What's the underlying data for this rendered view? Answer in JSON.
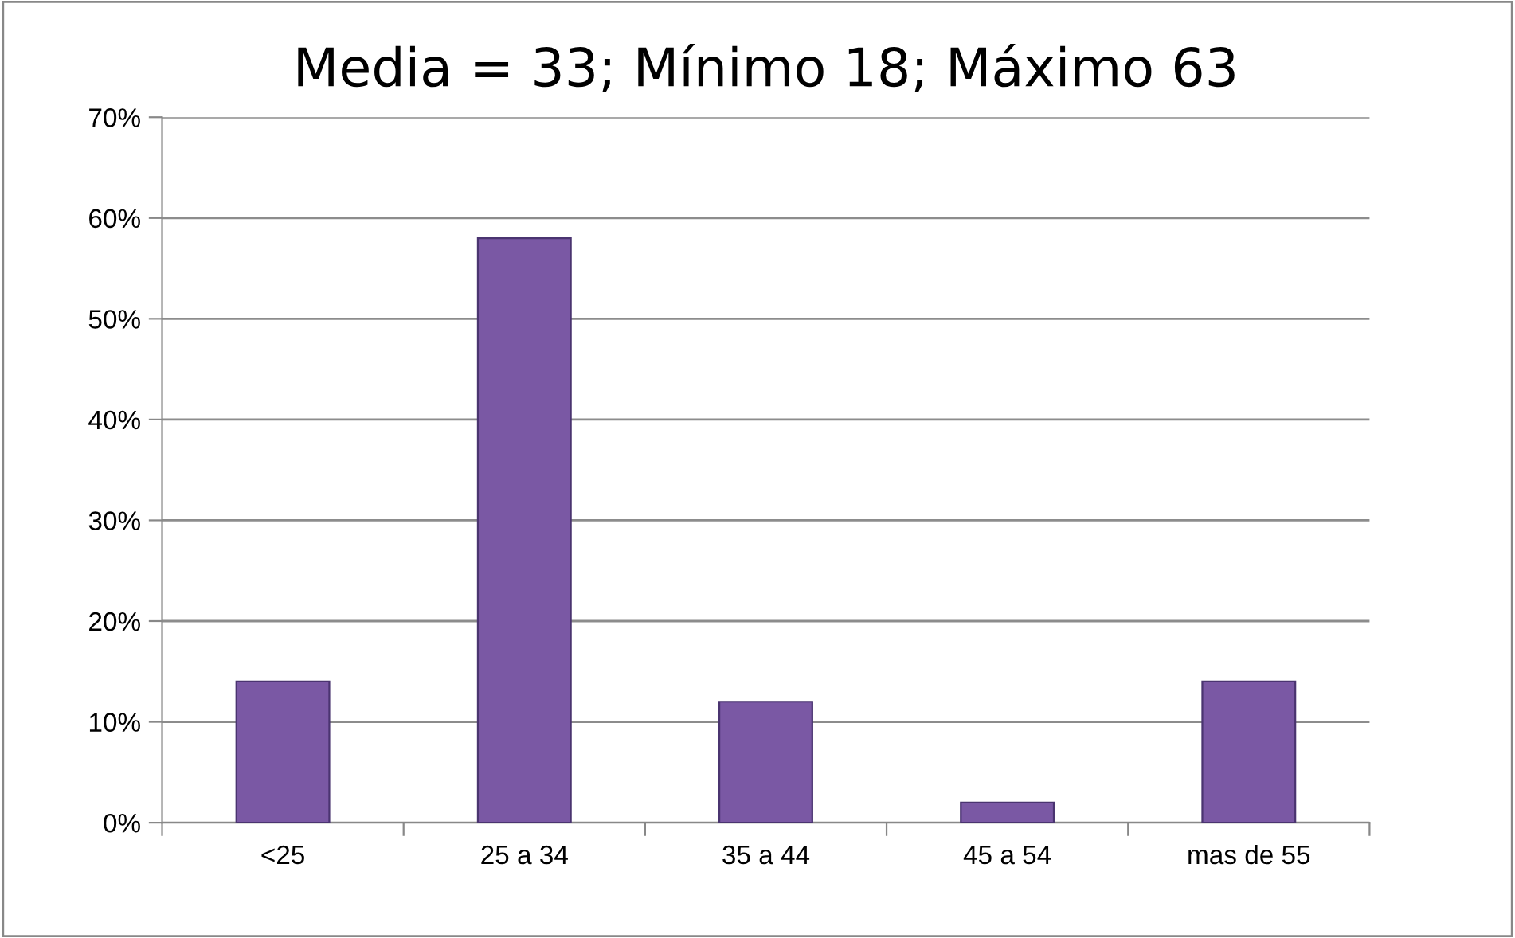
{
  "chart_data": {
    "type": "bar",
    "title": "Media = 33; Mínimo 18; Máximo 63",
    "categories": [
      "<25",
      "25 a 34",
      "35 a 44",
      "45 a 54",
      "mas de 55"
    ],
    "values": [
      14,
      58,
      12,
      2,
      14
    ],
    "color": "#7a58a4",
    "ylim": [
      0,
      70
    ],
    "yticks": [
      {
        "value": 0,
        "label": "0%"
      },
      {
        "value": 10,
        "label": "10%"
      },
      {
        "value": 20,
        "label": "20%"
      },
      {
        "value": 30,
        "label": "30%"
      },
      {
        "value": 40,
        "label": "40%"
      },
      {
        "value": 50,
        "label": "50%"
      },
      {
        "value": 60,
        "label": "60%"
      },
      {
        "value": 70,
        "label": "70%"
      }
    ],
    "grid": "y"
  }
}
